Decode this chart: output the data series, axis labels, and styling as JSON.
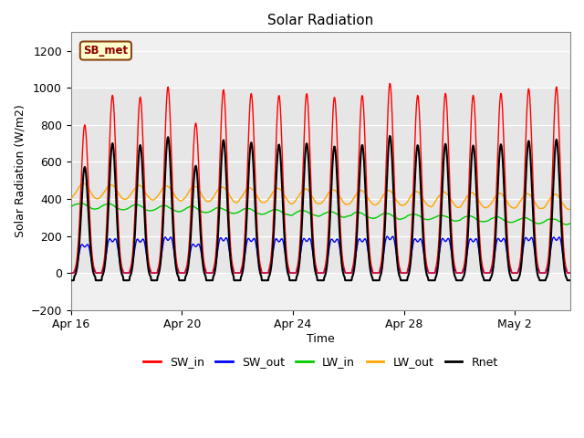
{
  "title": "Solar Radiation",
  "xlabel": "Time",
  "ylabel": "Solar Radiation (W/m2)",
  "ylim": [
    -200,
    1300
  ],
  "yticks": [
    -200,
    0,
    200,
    400,
    600,
    800,
    1000,
    1200
  ],
  "xtick_labels": [
    "Apr 16",
    "Apr 20",
    "Apr 24",
    "Apr 28",
    "May 2"
  ],
  "xtick_positions": [
    0,
    4,
    8,
    12,
    16
  ],
  "colors": {
    "SW_in": "#ff0000",
    "SW_out": "#0000ff",
    "LW_in": "#00cc00",
    "LW_out": "#ffa500",
    "Rnet": "#000000"
  },
  "plot_bg": "#e8e8e8",
  "band_color": "#d0d0d0",
  "label_box": {
    "text": "SB_met",
    "facecolor": "#ffffcc",
    "edgecolor": "#8B4513",
    "textcolor": "#8B0000"
  }
}
